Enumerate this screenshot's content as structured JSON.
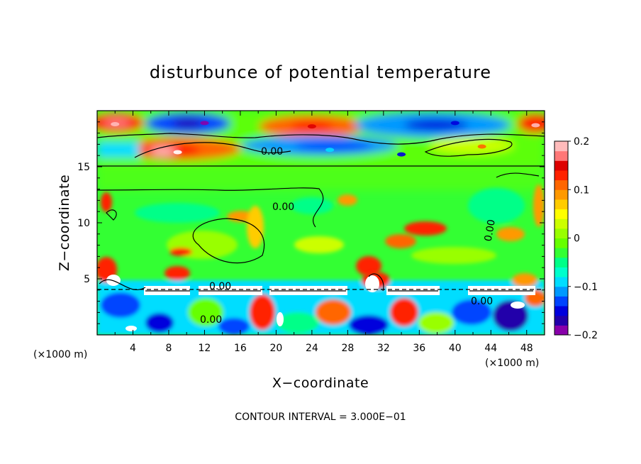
{
  "chart_data": {
    "type": "heatmap",
    "title": "disturbunce of potential temperature",
    "xlabel": "X−coordinate",
    "ylabel": "Z−coordinate",
    "x_unit": "(×1000 m)",
    "xlim": [
      0,
      50
    ],
    "ylim": [
      0,
      20
    ],
    "x_ticks": [
      4,
      8,
      12,
      16,
      20,
      24,
      28,
      32,
      36,
      40,
      44,
      48
    ],
    "y_ticks": [
      5,
      10,
      15
    ],
    "colorbar": {
      "range": [
        -0.2,
        0.2
      ],
      "ticks": [
        "0.2",
        "0.1",
        "0",
        "−0.1",
        "−0.2"
      ],
      "tick_values": [
        0.2,
        0.1,
        0,
        -0.1,
        -0.2
      ],
      "colors": [
        "#8800aa",
        "#2200aa",
        "#0000dd",
        "#0044ff",
        "#0099ff",
        "#00ddff",
        "#00ffcc",
        "#00ff88",
        "#33ff33",
        "#66ff00",
        "#99ff00",
        "#ccff00",
        "#ffff00",
        "#ffcc00",
        "#ff9900",
        "#ff6600",
        "#ff2200",
        "#dd0000",
        "#ff7777",
        "#ffbbbb"
      ]
    },
    "contour_label": "0.00",
    "features": [
      {
        "x": 2,
        "z": 18.8,
        "value": 0.2
      },
      {
        "x": 9,
        "z": 16.3,
        "value": 0.25
      },
      {
        "x": 12,
        "z": 18.9,
        "value": -0.2
      },
      {
        "x": 24,
        "z": 18.6,
        "value": 0.15
      },
      {
        "x": 26,
        "z": 16.5,
        "value": -0.1
      },
      {
        "x": 34,
        "z": 16.1,
        "value": -0.15
      },
      {
        "x": 40,
        "z": 18.9,
        "value": -0.15
      },
      {
        "x": 43,
        "z": 16.8,
        "value": 0.12
      },
      {
        "x": 49,
        "z": 18.7,
        "value": 0.2
      }
    ],
    "contour_interval_text": "CONTOUR INTERVAL = 3.000E−01"
  }
}
